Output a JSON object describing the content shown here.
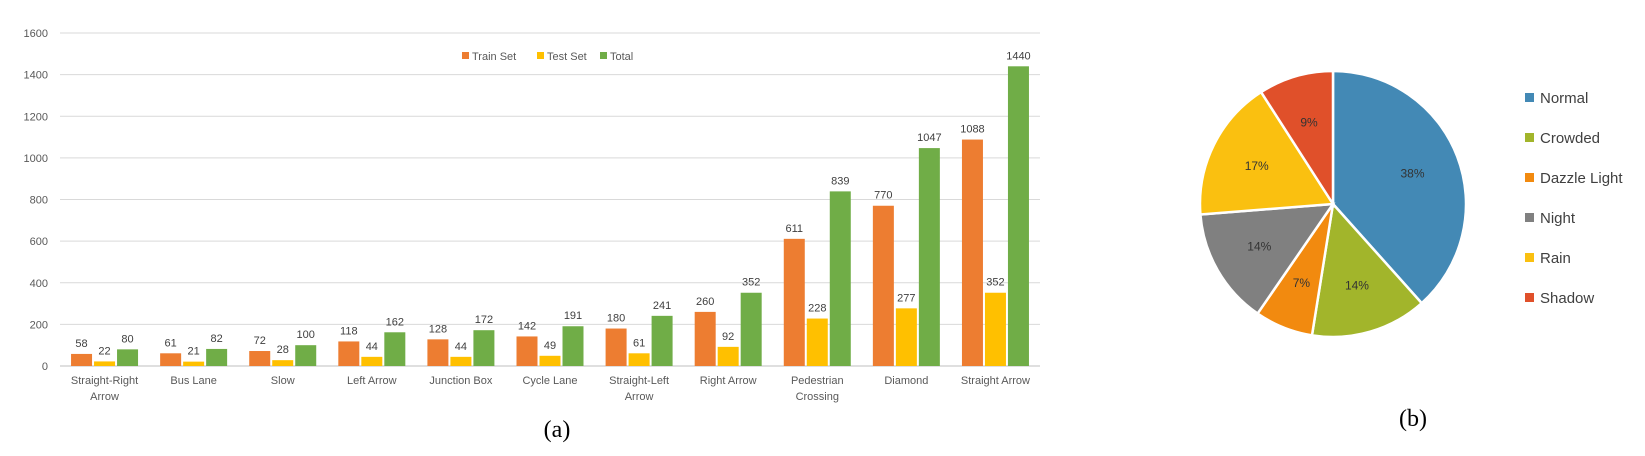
{
  "chart_data": [
    {
      "type": "bar",
      "caption": "(a)",
      "categories": [
        "Straight-Right Arrow",
        "Bus Lane",
        "Slow",
        "Left Arrow",
        "Junction Box",
        "Cycle Lane",
        "Straight-Left Arrow",
        "Right Arrow",
        "Pedestrian Crossing",
        "Diamond",
        "Straight Arrow"
      ],
      "category_lines": [
        [
          "Straight-Right",
          "Arrow"
        ],
        [
          "Bus Lane"
        ],
        [
          "Slow"
        ],
        [
          "Left Arrow"
        ],
        [
          "Junction Box"
        ],
        [
          "Cycle Lane"
        ],
        [
          "Straight-Left",
          "Arrow"
        ],
        [
          "Right Arrow"
        ],
        [
          "Pedestrian",
          "Crossing"
        ],
        [
          "Diamond"
        ],
        [
          "Straight Arrow"
        ]
      ],
      "series": [
        {
          "name": "Train Set",
          "color": "#ED7D31",
          "values": [
            58,
            61,
            72,
            118,
            128,
            142,
            180,
            260,
            611,
            770,
            1088
          ]
        },
        {
          "name": "Test Set",
          "color": "#FFC000",
          "values": [
            22,
            21,
            28,
            44,
            44,
            49,
            61,
            92,
            228,
            277,
            352
          ]
        },
        {
          "name": "Total",
          "color": "#70AD47",
          "values": [
            80,
            82,
            100,
            162,
            172,
            191,
            241,
            352,
            839,
            1047,
            1440
          ]
        }
      ],
      "yticks": [
        "0",
        "200",
        "400",
        "600",
        "800",
        "1000",
        "1200",
        "1400",
        "1600"
      ],
      "ylim": [
        0,
        1600
      ],
      "grid": true,
      "legend": "top-center"
    },
    {
      "type": "pie",
      "caption": "(b)",
      "labels": [
        "Normal",
        "Crowded",
        "Dazzle Light",
        "Night",
        "Rain",
        "Shadow"
      ],
      "values": [
        38,
        14,
        7,
        14,
        17,
        9
      ],
      "value_labels": [
        "38%",
        "14%",
        "7%",
        "14%",
        "17%",
        "9%"
      ],
      "colors": [
        "#4389B5",
        "#A2B52B",
        "#F28A0F",
        "#808080",
        "#FAC010",
        "#E0502A"
      ],
      "legend": "right"
    }
  ]
}
